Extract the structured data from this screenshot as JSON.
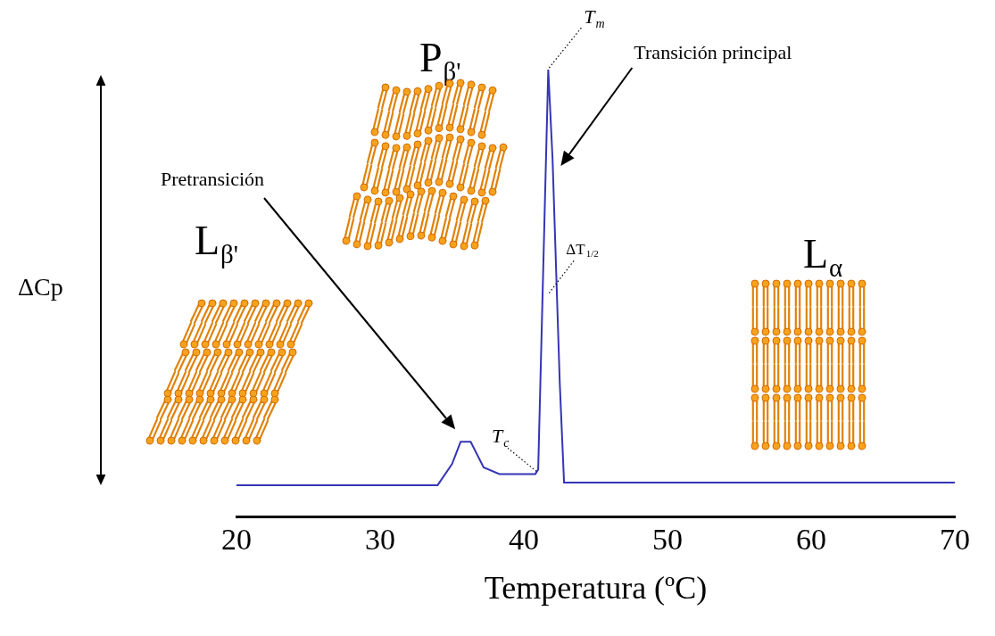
{
  "chart_data": {
    "type": "line",
    "x_label": "Temperatura (ºC)",
    "y_label": "ΔCp",
    "x": [
      20,
      34.0,
      35.0,
      35.6,
      36.3,
      37.2,
      38.3,
      40.8,
      41.0,
      41.7,
      42.0,
      42.5,
      42.8,
      70
    ],
    "values": [
      7.0,
      7.0,
      11.7,
      16.7,
      16.7,
      11.0,
      9.5,
      9.5,
      10.5,
      100,
      80,
      30,
      7.6,
      7.6
    ],
    "color": "#3535b5",
    "xlim": [
      20,
      70
    ],
    "xticks": [
      20,
      30,
      40,
      50,
      60,
      70
    ],
    "ylim": [
      0,
      100
    ],
    "tick_labels": "x",
    "grid": false,
    "annotations": {
      "pretransition": "Pretransición",
      "main_transition": "Transición principal",
      "Tm": "Tm",
      "Tc": "Tc",
      "half_width": "ΔT1/2",
      "phase_gel": "Lβ'",
      "phase_ripple": "Pβ'",
      "phase_fluid": "Lα"
    }
  }
}
